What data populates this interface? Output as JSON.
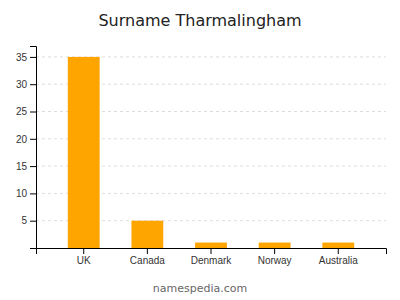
{
  "chart_data": {
    "type": "bar",
    "title": "Surname Tharmalingham",
    "categories": [
      "UK",
      "Canada",
      "Denmark",
      "Norway",
      "Australia"
    ],
    "values": [
      35,
      5,
      1,
      1,
      1
    ],
    "color": "#FFA500",
    "ylim": [
      0,
      37
    ],
    "yticks": [
      5,
      10,
      15,
      20,
      25,
      30,
      35
    ],
    "grid": true,
    "annotations": [
      "namespedia.com"
    ]
  }
}
